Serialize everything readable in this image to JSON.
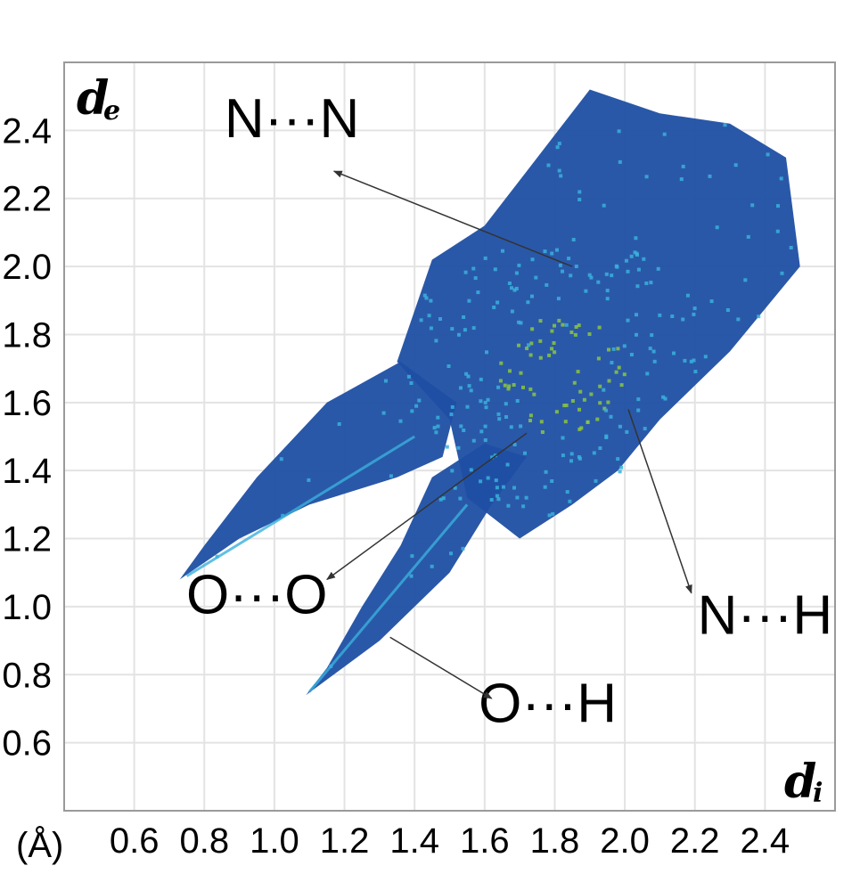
{
  "chart_data": {
    "type": "scatter",
    "title": "",
    "xlabel": "d",
    "xlabel_sub": "i",
    "ylabel": "d",
    "ylabel_sub": "e",
    "unit_label": "(Å)",
    "xlim": [
      0.4,
      2.6
    ],
    "ylim": [
      0.4,
      2.6
    ],
    "grid": true,
    "x_ticks": [
      "0.6",
      "0.8",
      "1.0",
      "1.2",
      "1.4",
      "1.6",
      "1.8",
      "2.0",
      "2.2",
      "2.4"
    ],
    "y_ticks": [
      "0.6",
      "0.8",
      "1.0",
      "1.2",
      "1.4",
      "1.6",
      "1.8",
      "2.0",
      "2.2",
      "2.4"
    ],
    "tick_values": [
      0.6,
      0.8,
      1.0,
      1.2,
      1.4,
      1.6,
      1.8,
      2.0,
      2.2,
      2.4
    ],
    "colors": {
      "low": "#1f4fa3",
      "mid": "#3ab0dc",
      "high": "#8cc63f",
      "grid": "#e3e3e3",
      "frame": "#9a9a9a"
    },
    "regions": [
      {
        "name": "O···H spike",
        "polygon": [
          [
            1.09,
            0.74
          ],
          [
            1.3,
            0.9
          ],
          [
            1.5,
            1.1
          ],
          [
            1.62,
            1.3
          ],
          [
            1.72,
            1.44
          ],
          [
            1.6,
            1.48
          ],
          [
            1.45,
            1.38
          ],
          [
            1.36,
            1.18
          ],
          [
            1.25,
            1.0
          ],
          [
            1.15,
            0.82
          ]
        ]
      },
      {
        "name": "O···O spike",
        "polygon": [
          [
            0.73,
            1.08
          ],
          [
            0.9,
            1.2
          ],
          [
            1.1,
            1.3
          ],
          [
            1.35,
            1.38
          ],
          [
            1.48,
            1.44
          ],
          [
            1.52,
            1.6
          ],
          [
            1.36,
            1.72
          ],
          [
            1.15,
            1.6
          ],
          [
            0.95,
            1.38
          ],
          [
            0.8,
            1.18
          ]
        ]
      },
      {
        "name": "central body",
        "polygon": [
          [
            1.35,
            1.72
          ],
          [
            1.45,
            2.02
          ],
          [
            1.6,
            2.12
          ],
          [
            1.72,
            2.28
          ],
          [
            1.9,
            2.52
          ],
          [
            2.1,
            2.45
          ],
          [
            2.3,
            2.42
          ],
          [
            2.46,
            2.32
          ],
          [
            2.5,
            2.0
          ],
          [
            2.3,
            1.75
          ],
          [
            2.1,
            1.55
          ],
          [
            1.98,
            1.4
          ],
          [
            1.85,
            1.3
          ],
          [
            1.7,
            1.2
          ],
          [
            1.55,
            1.32
          ],
          [
            1.5,
            1.55
          ]
        ]
      }
    ],
    "annotations": [
      {
        "text": "N···N",
        "label_x": 1.05,
        "label_y": 2.38,
        "arrow_from": [
          1.85,
          2.0
        ],
        "arrow_to": [
          1.17,
          2.28
        ]
      },
      {
        "text": "O···O",
        "label_x": 0.95,
        "label_y": 0.98,
        "arrow_from": [
          1.72,
          1.51
        ],
        "arrow_to": [
          1.15,
          1.08
        ]
      },
      {
        "text": "O···H",
        "label_x": 1.78,
        "label_y": 0.66,
        "arrow_from": [
          1.33,
          0.91
        ],
        "arrow_to": [
          1.62,
          0.73
        ]
      },
      {
        "text": "N···H",
        "label_x": 2.4,
        "label_y": 0.92,
        "arrow_from": [
          2.01,
          1.58
        ],
        "arrow_to": [
          2.19,
          1.04
        ]
      }
    ]
  }
}
